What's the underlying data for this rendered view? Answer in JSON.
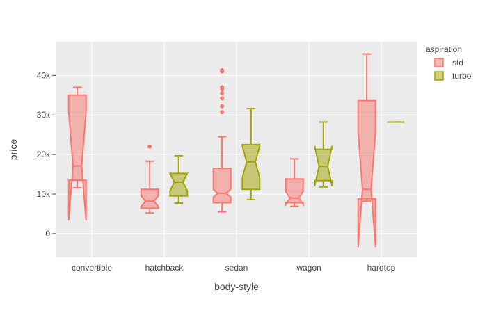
{
  "chart_data": {
    "type": "box",
    "subtype": "notched box plot",
    "xlabel": "body-style",
    "ylabel": "price",
    "categories": [
      "convertible",
      "hatchback",
      "sedan",
      "wagon",
      "hardtop"
    ],
    "ylim": [
      -6000,
      48500
    ],
    "yticks": [
      0,
      10000,
      20000,
      30000,
      40000
    ],
    "ytick_labels": [
      "0",
      "10k",
      "20k",
      "30k",
      "40k"
    ],
    "grid": true,
    "legend": {
      "title": "aspiration",
      "position": "top-right outside plot"
    },
    "series": [
      {
        "name": "std",
        "color": "#F8766D",
        "boxes": [
          {
            "category": "convertible",
            "min": 11600,
            "q1": 13500,
            "median": 17100,
            "q3": 35000,
            "max": 37000,
            "notch_low": 3300,
            "notch_high": 30900,
            "outliers": []
          },
          {
            "category": "hatchback",
            "min": 5200,
            "q1": 6400,
            "median": 8200,
            "q3": 11200,
            "max": 18300,
            "notch_low": 6800,
            "notch_high": 9600,
            "outliers": [
              22000
            ]
          },
          {
            "category": "sedan",
            "min": 5500,
            "q1": 7800,
            "median": 10200,
            "q3": 16500,
            "max": 24500,
            "notch_low": 9200,
            "notch_high": 11200,
            "outliers": [
              30700,
              32200,
              34200,
              35500,
              36500,
              37000,
              41000,
              41300
            ]
          },
          {
            "category": "wagon",
            "min": 6900,
            "q1": 7800,
            "median": 9000,
            "q3": 13800,
            "max": 18900,
            "notch_low": 7400,
            "notch_high": 10600,
            "outliers": []
          },
          {
            "category": "hardtop",
            "min": 8200,
            "q1": 8800,
            "median": 11200,
            "q3": 33600,
            "max": 45400,
            "notch_low": -3400,
            "notch_high": 25800,
            "outliers": []
          }
        ]
      },
      {
        "name": "turbo",
        "color": "#A3A500",
        "boxes": [
          {
            "category": "hatchback",
            "min": 7700,
            "q1": 9500,
            "median": 13000,
            "q3": 15200,
            "max": 19700,
            "notch_low": 10800,
            "notch_high": 15200,
            "outliers": []
          },
          {
            "category": "sedan",
            "min": 8600,
            "q1": 11200,
            "median": 18100,
            "q3": 22500,
            "max": 31600,
            "notch_low": 14100,
            "notch_high": 22100,
            "outliers": []
          },
          {
            "category": "wagon",
            "min": 11800,
            "q1": 13400,
            "median": 17000,
            "q3": 21300,
            "max": 28200,
            "notch_low": 12000,
            "notch_high": 22200,
            "outliers": []
          },
          {
            "category": "hardtop",
            "min": 28200,
            "q1": 28200,
            "median": 28200,
            "q3": 28200,
            "max": 28200,
            "notch_low": 28200,
            "notch_high": 28200,
            "outliers": []
          }
        ]
      }
    ]
  }
}
